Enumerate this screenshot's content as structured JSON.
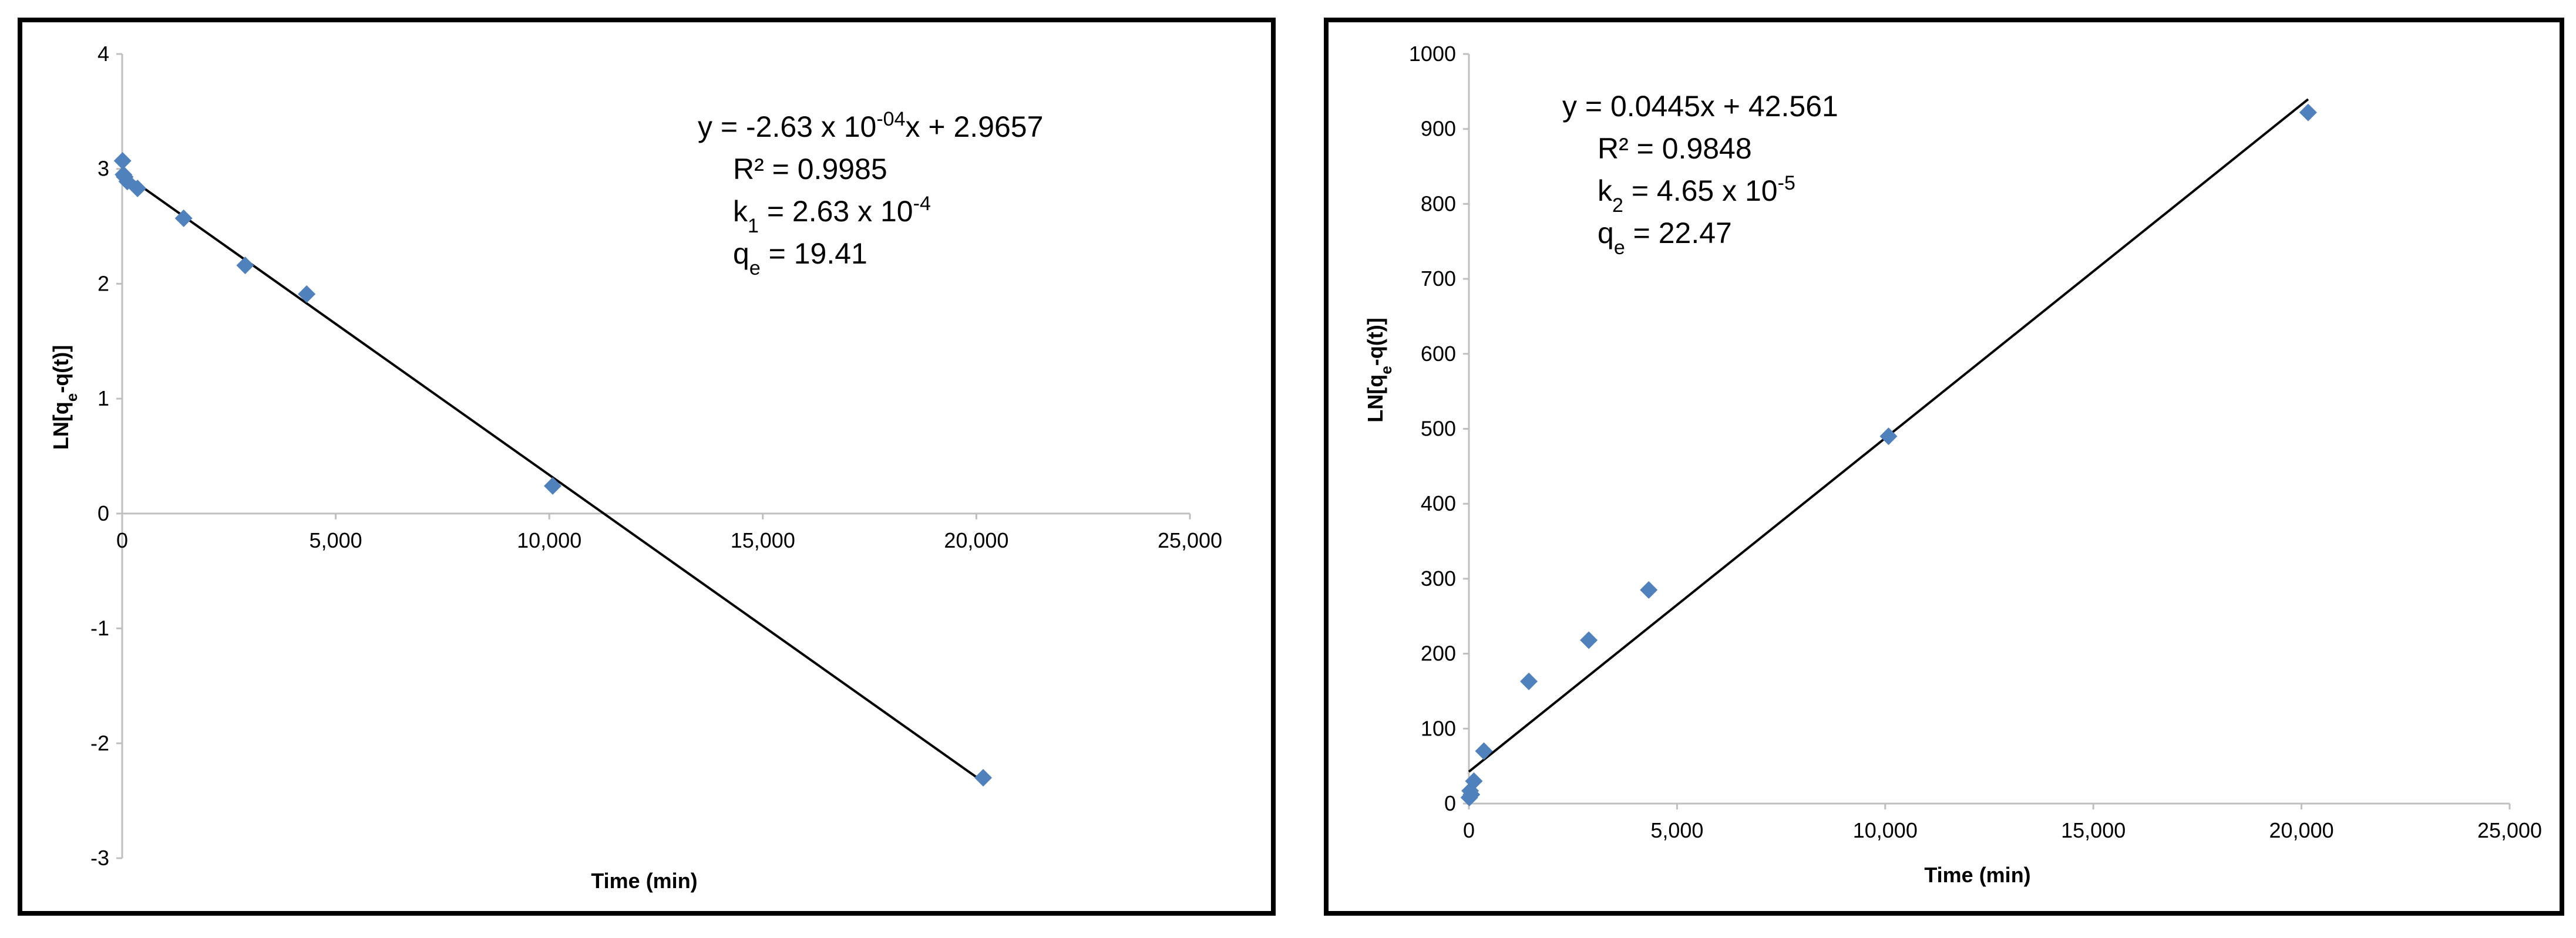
{
  "colors": {
    "marker": "#4F81BD",
    "axis": "#BFBFBF",
    "line": "#000000"
  },
  "chart_data": [
    {
      "type": "scatter",
      "title": "",
      "xlabel": "Time (min)",
      "ylabel": "LN[qe-q(t)]",
      "xlim": [
        0,
        25000
      ],
      "ylim": [
        -3,
        4
      ],
      "xticks": [
        0,
        5000,
        10000,
        15000,
        20000,
        25000
      ],
      "xtick_labels": [
        "0",
        "5,000",
        "10,000",
        "15,000",
        "20,000",
        "25,000"
      ],
      "yticks": [
        -3,
        -2,
        -1,
        0,
        1,
        2,
        3,
        4
      ],
      "ytick_labels": [
        "-3",
        "-2",
        "-1",
        "0",
        "1",
        "2",
        "3",
        "4"
      ],
      "grid": false,
      "points": [
        {
          "x": 10,
          "y": 3.07
        },
        {
          "x": 30,
          "y": 2.95
        },
        {
          "x": 60,
          "y": 2.93
        },
        {
          "x": 120,
          "y": 2.89
        },
        {
          "x": 360,
          "y": 2.83
        },
        {
          "x": 1440,
          "y": 2.57
        },
        {
          "x": 2880,
          "y": 2.16
        },
        {
          "x": 4320,
          "y": 1.91
        },
        {
          "x": 10080,
          "y": 0.24
        },
        {
          "x": 20160,
          "y": -2.3
        }
      ],
      "trendline": {
        "slope": -0.000263,
        "intercept": 2.9657,
        "x_range": [
          0,
          20160
        ]
      },
      "annotations": [
        {
          "pre": "y = -2.63 x 10",
          "sup": "-04",
          "post": "x + 2.9657"
        },
        {
          "pre": "R² = 0.9985"
        },
        {
          "pre": "k",
          "sub": "1",
          "post": " = 2.63 x 10",
          "sup": "-4"
        },
        {
          "pre": "q",
          "sub": "e",
          "post": " = 19.41"
        }
      ]
    },
    {
      "type": "scatter",
      "title": "",
      "xlabel": "Time (min)",
      "ylabel": "LN[qe-q(t)]",
      "xlim": [
        0,
        25000
      ],
      "ylim": [
        0,
        1000
      ],
      "xticks": [
        0,
        5000,
        10000,
        15000,
        20000,
        25000
      ],
      "xtick_labels": [
        "0",
        "5,000",
        "10,000",
        "15,000",
        "20,000",
        "25,000"
      ],
      "yticks": [
        0,
        100,
        200,
        300,
        400,
        500,
        600,
        700,
        800,
        900,
        1000
      ],
      "ytick_labels": [
        "0",
        "100",
        "200",
        "300",
        "400",
        "500",
        "600",
        "700",
        "800",
        "900",
        "1000"
      ],
      "grid": false,
      "points": [
        {
          "x": 10,
          "y": 8
        },
        {
          "x": 30,
          "y": 17
        },
        {
          "x": 60,
          "y": 12
        },
        {
          "x": 120,
          "y": 30
        },
        {
          "x": 360,
          "y": 70
        },
        {
          "x": 1440,
          "y": 163
        },
        {
          "x": 2880,
          "y": 218
        },
        {
          "x": 4320,
          "y": 285
        },
        {
          "x": 10080,
          "y": 490
        },
        {
          "x": 20160,
          "y": 922
        }
      ],
      "trendline": {
        "slope": 0.0445,
        "intercept": 42.561,
        "x_range": [
          0,
          20160
        ]
      },
      "annotations": [
        {
          "pre": "y = 0.0445x + 42.561"
        },
        {
          "pre": "R² = 0.9848"
        },
        {
          "pre": "k",
          "sub": "2",
          "post": " = 4.65 x 10",
          "sup": "-5"
        },
        {
          "pre": "q",
          "sub": "e",
          "post": " = 22.47"
        }
      ]
    }
  ]
}
